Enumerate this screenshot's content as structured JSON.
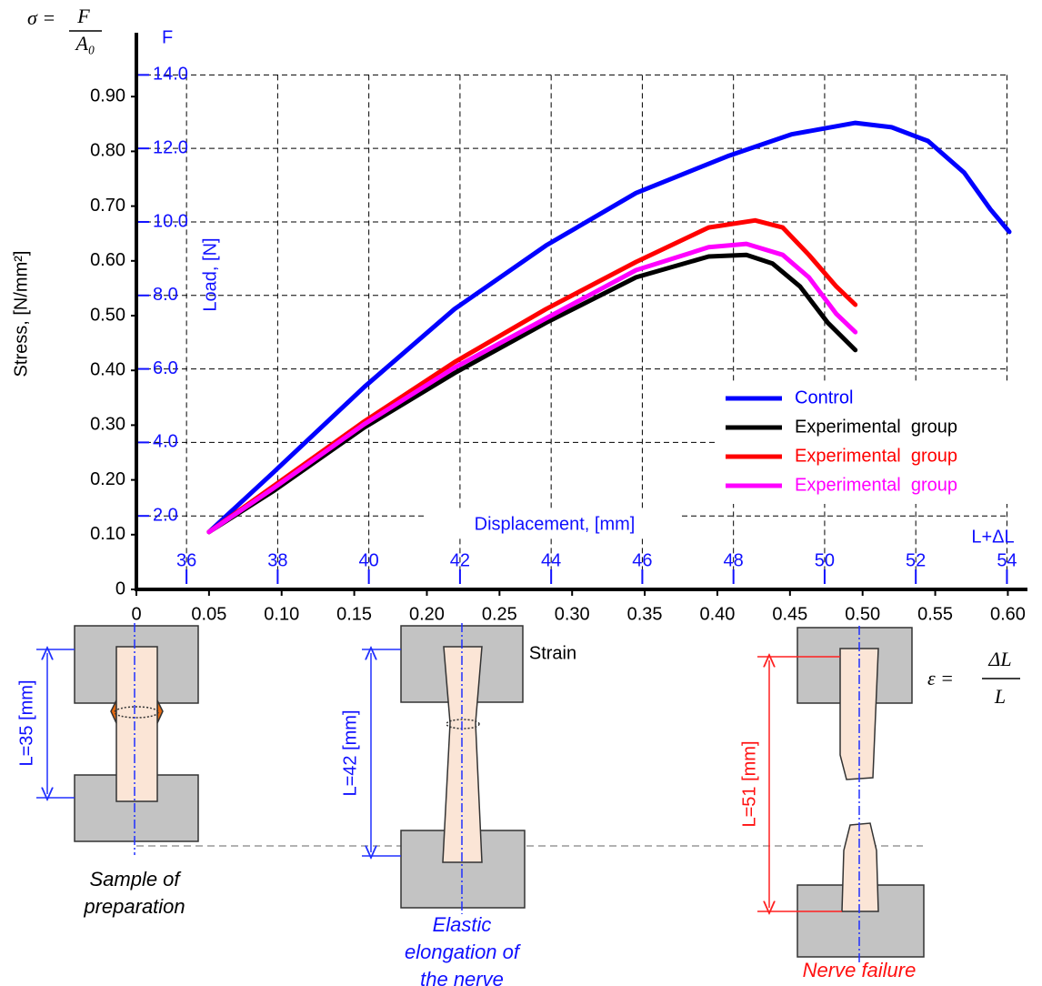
{
  "chart_data": {
    "type": "line",
    "stress_formula": {
      "lhs": "σ =",
      "numerator": "F",
      "denominator": "A₀"
    },
    "strain_formula": {
      "lhs": "ε =",
      "numerator": "ΔL",
      "denominator": "L"
    },
    "y_label": "Stress, [N/mm²]",
    "y2_title": "F",
    "y2_label": "Load, [N]",
    "x_label": "Strain",
    "x2_label": "Displacement, [mm]",
    "x2_title": "L+ΔL",
    "xlim": [
      0,
      0.6135
    ],
    "xticks": [
      0,
      {
        "value": 0.05,
        "label": "0.05"
      },
      {
        "value": 0.1,
        "label": "0.10"
      },
      {
        "value": 0.15,
        "label": "0.15"
      },
      {
        "value": 0.2,
        "label": "0.20"
      },
      {
        "value": 0.25,
        "label": "0.25"
      },
      {
        "value": 0.3,
        "label": "0.30"
      },
      {
        "value": 0.35,
        "label": "0.35"
      },
      {
        "value": 0.4,
        "label": "0.40"
      },
      {
        "value": 0.45,
        "label": "0.45"
      },
      {
        "value": 0.5,
        "label": "0.50"
      },
      {
        "value": 0.55,
        "label": "0.55"
      },
      {
        "value": 0.6,
        "label": "0.60"
      }
    ],
    "ylim": [
      0,
      1.0
    ],
    "yticks": [
      0,
      {
        "value": 0.1,
        "label": "0.10"
      },
      {
        "value": 0.2,
        "label": "0.20"
      },
      {
        "value": 0.3,
        "label": "0.30"
      },
      {
        "value": 0.4,
        "label": "0.40"
      },
      {
        "value": 0.5,
        "label": "0.50"
      },
      {
        "value": 0.6,
        "label": "0.60"
      },
      {
        "value": 0.7,
        "label": "0.70"
      },
      {
        "value": 0.8,
        "label": "0.80"
      },
      {
        "value": 0.9,
        "label": "0.90"
      }
    ],
    "y2lim": [
      0,
      14.9
    ],
    "y2ticks": [
      {
        "value": 2,
        "label": "2.0"
      },
      {
        "value": 4,
        "label": "4.0"
      },
      {
        "value": 6,
        "label": "6.0"
      },
      {
        "value": 8,
        "label": "8.0"
      },
      {
        "value": 10,
        "label": "10.0"
      },
      {
        "value": 12,
        "label": "12.0"
      },
      {
        "value": 14,
        "label": "14.0"
      }
    ],
    "x2lim": [
      34.9,
      54.45
    ],
    "x2ticks": [
      36,
      38,
      40,
      42,
      44,
      46,
      48,
      50,
      52,
      54
    ],
    "grid": true,
    "legend": "right",
    "series": [
      {
        "name": "Control",
        "color": "#0000ff",
        "x": [
          0.05,
          0.094,
          0.157,
          0.219,
          0.282,
          0.344,
          0.407,
          0.451,
          0.495,
          0.52,
          0.545,
          0.57,
          0.588,
          0.601
        ],
        "values": [
          0.105,
          0.213,
          0.37,
          0.512,
          0.628,
          0.724,
          0.791,
          0.831,
          0.852,
          0.844,
          0.819,
          0.761,
          0.694,
          0.653
        ]
      },
      {
        "name": "Experimental  group",
        "color": "#000000",
        "x": [
          0.05,
          0.094,
          0.157,
          0.219,
          0.282,
          0.344,
          0.394,
          0.42,
          0.438,
          0.457,
          0.476,
          0.495
        ],
        "values": [
          0.105,
          0.179,
          0.296,
          0.395,
          0.487,
          0.57,
          0.608,
          0.611,
          0.595,
          0.553,
          0.487,
          0.437
        ]
      },
      {
        "name": "Experimental  group",
        "color": "#ff0000",
        "x": [
          0.05,
          0.094,
          0.157,
          0.219,
          0.282,
          0.344,
          0.394,
          0.426,
          0.445,
          0.463,
          0.482,
          0.495
        ],
        "values": [
          0.105,
          0.188,
          0.307,
          0.415,
          0.512,
          0.598,
          0.661,
          0.674,
          0.661,
          0.611,
          0.553,
          0.52
        ]
      },
      {
        "name": "Experimental  group",
        "color": "#ff00ff",
        "x": [
          0.05,
          0.094,
          0.157,
          0.219,
          0.282,
          0.344,
          0.394,
          0.42,
          0.445,
          0.463,
          0.482,
          0.495
        ],
        "values": [
          0.105,
          0.184,
          0.302,
          0.405,
          0.495,
          0.583,
          0.625,
          0.631,
          0.611,
          0.57,
          0.503,
          0.47
        ]
      }
    ]
  },
  "diagrams": [
    {
      "length_label": "L=35 [mm]",
      "caption": [
        "Sample of",
        "preparation"
      ]
    },
    {
      "length_label": "L=42 [mm]",
      "caption": [
        "Elastic",
        "elongation of",
        "the nerve"
      ]
    },
    {
      "length_label": "L=51 [mm]",
      "caption": [
        "Nerve failure"
      ]
    }
  ]
}
